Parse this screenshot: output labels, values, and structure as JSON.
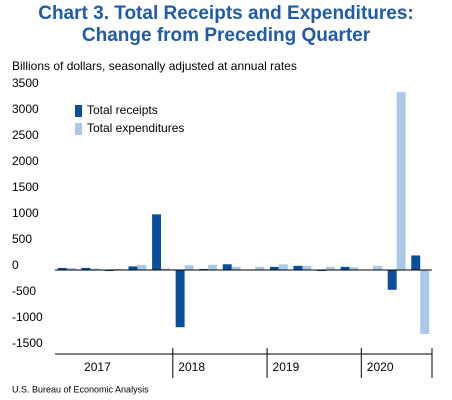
{
  "chart_data": {
    "type": "bar",
    "title": [
      "Chart 3. Total Receipts and Expenditures:",
      "Change from Preceding Quarter"
    ],
    "subtitle": "Billions of dollars, seasonally adjusted at annual rates",
    "source": "U.S. Bureau of Economic Analysis",
    "categories": [
      null,
      "2017",
      null,
      null,
      null,
      "2018",
      null,
      null,
      null,
      "2019",
      null,
      null,
      null,
      "2020",
      null,
      null
    ],
    "series": [
      {
        "name": "Total receipts",
        "color": "#0b4f9c",
        "values": [
          40,
          40,
          -20,
          70,
          1070,
          -1100,
          20,
          110,
          10,
          60,
          80,
          -20,
          60,
          0,
          -380,
          280
        ]
      },
      {
        "name": "Total expenditures",
        "color": "#a9c8ea",
        "values": [
          40,
          30,
          20,
          100,
          30,
          90,
          100,
          60,
          60,
          110,
          80,
          60,
          50,
          80,
          3420,
          -1230
        ]
      }
    ],
    "ylim": [
      -1500,
      3500
    ],
    "yticks": [
      3500,
      3000,
      2500,
      2000,
      1500,
      1000,
      500,
      0,
      -500,
      -1000,
      -1500
    ],
    "legend": "top-left"
  }
}
